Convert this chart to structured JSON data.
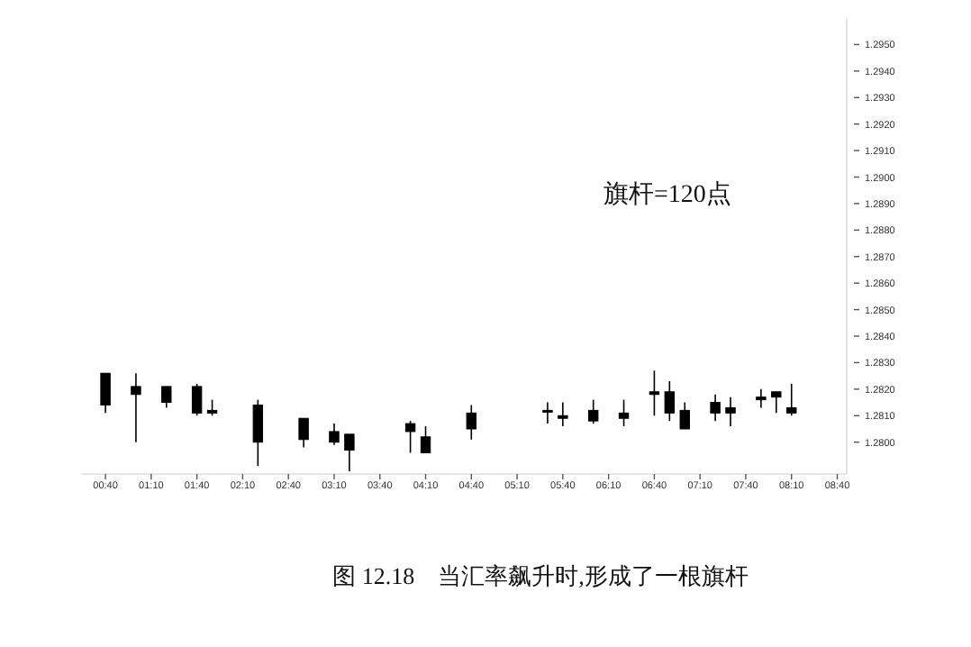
{
  "chart_data": {
    "type": "candlestick",
    "x": [
      0.6667,
      1,
      1.3333,
      1.6667,
      1.8333,
      2.3333,
      2.8333,
      3.1667,
      3.3333,
      4,
      4.1667,
      4.6667,
      5.5,
      5.6667,
      6,
      6.3333,
      6.6667,
      6.8333,
      7,
      7.3333,
      7.5,
      7.8333,
      8,
      8.1667
    ],
    "ohlc": [
      [
        1.2826,
        1.2826,
        1.2811,
        1.2814
      ],
      [
        1.2821,
        1.2826,
        1.28,
        1.2818
      ],
      [
        1.2821,
        1.2821,
        1.2813,
        1.2815
      ],
      [
        1.2821,
        1.2822,
        1.281,
        1.2811
      ],
      [
        1.2812,
        1.2816,
        1.281,
        1.2811
      ],
      [
        1.2814,
        1.2816,
        1.2791,
        1.28
      ],
      [
        1.2809,
        1.2809,
        1.2798,
        1.2801
      ],
      [
        1.2804,
        1.2807,
        1.2799,
        1.28
      ],
      [
        1.2803,
        1.2803,
        1.2789,
        1.2797
      ],
      [
        1.2807,
        1.2808,
        1.2796,
        1.2804
      ],
      [
        1.2802,
        1.2806,
        1.2796,
        1.2796
      ],
      [
        1.2811,
        1.2814,
        1.2801,
        1.2805
      ],
      [
        1.2812,
        1.2815,
        1.2807,
        1.2812
      ],
      [
        1.281,
        1.2815,
        1.2806,
        1.2809
      ],
      [
        1.2812,
        1.2816,
        1.2807,
        1.2808
      ],
      [
        1.2811,
        1.2816,
        1.2806,
        1.2809
      ],
      [
        1.2819,
        1.2827,
        1.281,
        1.2818
      ],
      [
        1.2819,
        1.2823,
        1.2808,
        1.2811
      ],
      [
        1.2812,
        1.2815,
        1.2805,
        1.2805
      ],
      [
        1.2815,
        1.2818,
        1.2808,
        1.2811
      ],
      [
        1.2813,
        1.2817,
        1.2806,
        1.2811
      ],
      [
        1.2817,
        1.282,
        1.2813,
        1.2816
      ],
      [
        1.2819,
        1.2819,
        1.2811,
        1.2817
      ],
      [
        1.2813,
        1.2822,
        1.281,
        1.2811
      ]
    ],
    "color": "#000000",
    "xlim": [
      0.4,
      8.77
    ],
    "xticks": [
      {
        "value": 0.6667,
        "label": "00:40"
      },
      {
        "value": 1.1667,
        "label": "01:10"
      },
      {
        "value": 1.6667,
        "label": "01:40"
      },
      {
        "value": 2.1667,
        "label": "02:10"
      },
      {
        "value": 2.6667,
        "label": "02:40"
      },
      {
        "value": 3.1667,
        "label": "03:10"
      },
      {
        "value": 3.6667,
        "label": "03:40"
      },
      {
        "value": 4.1667,
        "label": "04:10"
      },
      {
        "value": 4.6667,
        "label": "04:40"
      },
      {
        "value": 5.1667,
        "label": "05:10"
      },
      {
        "value": 5.6667,
        "label": "05:40"
      },
      {
        "value": 6.1667,
        "label": "06:10"
      },
      {
        "value": 6.6667,
        "label": "06:40"
      },
      {
        "value": 7.1667,
        "label": "07:10"
      },
      {
        "value": 7.6667,
        "label": "07:40"
      },
      {
        "value": 8.1667,
        "label": "08:10"
      },
      {
        "value": 8.6667,
        "label": "08:40"
      }
    ],
    "ylim": [
      1.2788,
      1.296
    ],
    "yticks": [
      {
        "value": 1.28,
        "label": "1.2800"
      },
      {
        "value": 1.281,
        "label": "1.2810"
      },
      {
        "value": 1.282,
        "label": "1.2820"
      },
      {
        "value": 1.283,
        "label": "1.2830"
      },
      {
        "value": 1.284,
        "label": "1.2840"
      },
      {
        "value": 1.285,
        "label": "1.2850"
      },
      {
        "value": 1.286,
        "label": "1.2860"
      },
      {
        "value": 1.287,
        "label": "1.2870"
      },
      {
        "value": 1.288,
        "label": "1.2880"
      },
      {
        "value": 1.289,
        "label": "1.2890"
      },
      {
        "value": 1.29,
        "label": "1.2900"
      },
      {
        "value": 1.291,
        "label": "1.2910"
      },
      {
        "value": 1.292,
        "label": "1.2920"
      },
      {
        "value": 1.293,
        "label": "1.2930"
      },
      {
        "value": 1.294,
        "label": "1.2940"
      },
      {
        "value": 1.295,
        "label": "1.2950"
      }
    ],
    "annotations": [
      "旗杆=120点",
      "图 12.18　当汇率飙升时,形成了一根旗杆"
    ]
  }
}
